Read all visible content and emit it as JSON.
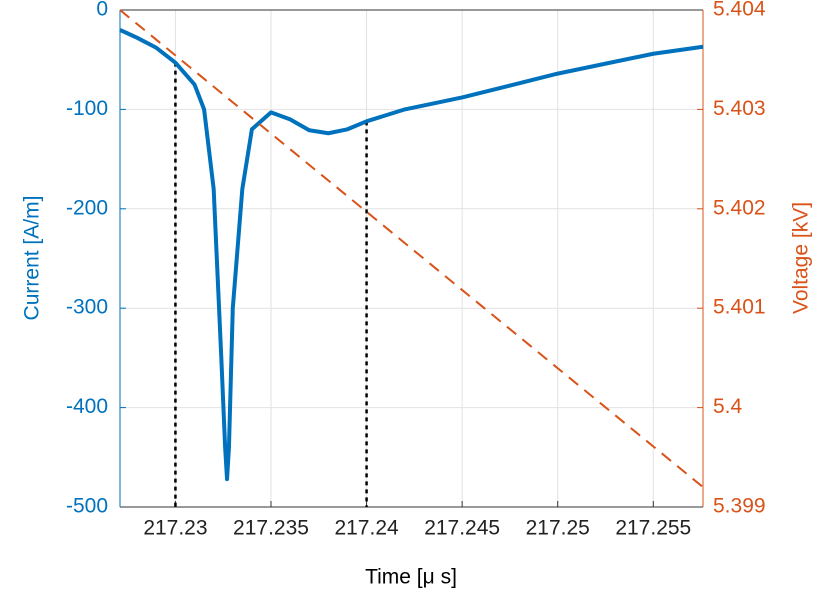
{
  "chart_data": {
    "type": "line",
    "xlabel": "Time [μ s]",
    "ylabel": "Current [A/m]",
    "y2label": "Voltage [kV]",
    "xlim": [
      217.2271,
      217.2576
    ],
    "xticks": [
      217.23,
      217.235,
      217.24,
      217.245,
      217.25,
      217.255
    ],
    "ylim": [
      -500,
      0
    ],
    "yticks": [
      -500,
      -400,
      -300,
      -200,
      -100,
      0
    ],
    "y2lim": [
      5.399,
      5.404
    ],
    "y2ticks": [
      5.399,
      5.4,
      5.401,
      5.402,
      5.403,
      5.404
    ],
    "grid": true,
    "series": [
      {
        "color": "#0072bd",
        "axis": "y",
        "dashed": false,
        "x": [
          217.2271,
          217.228,
          217.229,
          217.23,
          217.231,
          217.2315,
          217.232,
          217.2324,
          217.2326,
          217.2327,
          217.2328,
          217.233,
          217.2335,
          217.234,
          217.235,
          217.236,
          217.237,
          217.238,
          217.239,
          217.24,
          217.242,
          217.245,
          217.25,
          217.255,
          217.2576
        ],
        "values": [
          -20,
          -28,
          -38,
          -53,
          -75,
          -100,
          -180,
          -350,
          -440,
          -472,
          -440,
          -300,
          -180,
          -120,
          -103,
          -110,
          -121,
          -124,
          -120,
          -112,
          -100,
          -88,
          -64,
          -44,
          -37
        ]
      },
      {
        "color": "#d95319",
        "axis": "y2",
        "dashed": true,
        "x": [
          217.2271,
          217.2576
        ],
        "values": [
          5.404,
          5.3992
        ]
      }
    ],
    "reference_lines": {
      "color": "#000000",
      "x": [
        217.23,
        217.24
      ],
      "top": [
        -53,
        -112
      ]
    }
  }
}
